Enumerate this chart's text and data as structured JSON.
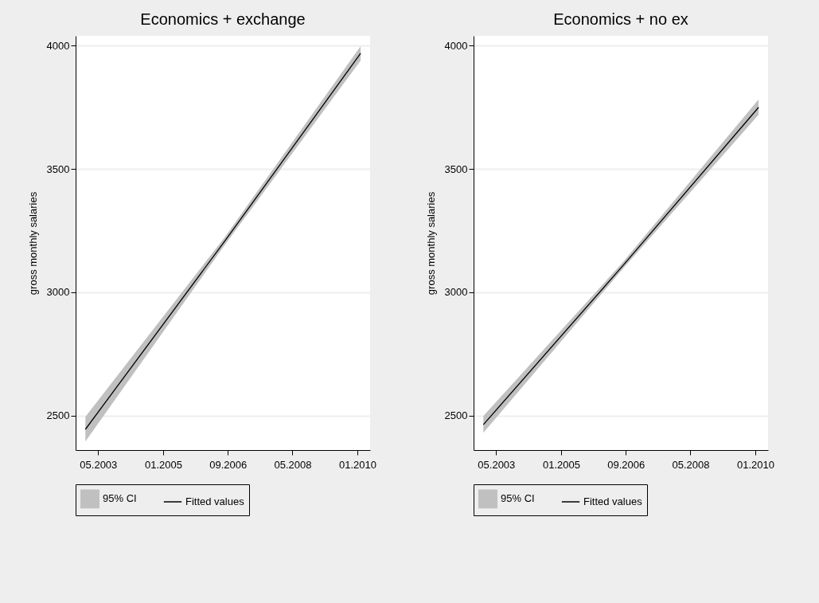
{
  "chart_data": [
    {
      "type": "line",
      "title": "Economics + exchange",
      "ylabel": "gross monthly salaries",
      "xlim": [
        "2002-10",
        "2010-05"
      ],
      "ylim": [
        2360,
        4040
      ],
      "xticks": [
        {
          "value": "2003-05",
          "label": "05.2003"
        },
        {
          "value": "2005-01",
          "label": "01.2005"
        },
        {
          "value": "2006-09",
          "label": "09.2006"
        },
        {
          "value": "2008-05",
          "label": "05.2008"
        },
        {
          "value": "2010-01",
          "label": "01.2010"
        }
      ],
      "yticks": [
        2500,
        3000,
        3500,
        4000
      ],
      "grid": "y",
      "legend": "bottom",
      "series": [
        {
          "name": "95% CI",
          "type": "area",
          "color": "#c0c0c0"
        },
        {
          "name": "Fitted values",
          "type": "line",
          "color": "#000000",
          "x": [
            "2003-01",
            "2006-08",
            "2010-02"
          ],
          "values": [
            2444,
            3206,
            3969
          ],
          "lower": [
            2395,
            3190,
            3940
          ],
          "upper": [
            2495,
            3222,
            3998
          ]
        }
      ]
    },
    {
      "type": "line",
      "title": "Economics + no ex",
      "ylabel": "gross monthly salaries",
      "xlim": [
        "2002-10",
        "2010-05"
      ],
      "ylim": [
        2360,
        4040
      ],
      "xticks": [
        {
          "value": "2003-05",
          "label": "05.2003"
        },
        {
          "value": "2005-01",
          "label": "01.2005"
        },
        {
          "value": "2006-09",
          "label": "09.2006"
        },
        {
          "value": "2008-05",
          "label": "05.2008"
        },
        {
          "value": "2010-01",
          "label": "01.2010"
        }
      ],
      "yticks": [
        2500,
        3000,
        3500,
        4000
      ],
      "grid": "y",
      "legend": "bottom",
      "series": [
        {
          "name": "95% CI",
          "type": "area",
          "color": "#c0c0c0"
        },
        {
          "name": "Fitted values",
          "type": "line",
          "color": "#000000",
          "x": [
            "2003-01",
            "2006-08",
            "2010-02"
          ],
          "values": [
            2463,
            3106,
            3750
          ],
          "lower": [
            2430,
            3093,
            3720
          ],
          "upper": [
            2498,
            3120,
            3782
          ]
        }
      ]
    }
  ]
}
